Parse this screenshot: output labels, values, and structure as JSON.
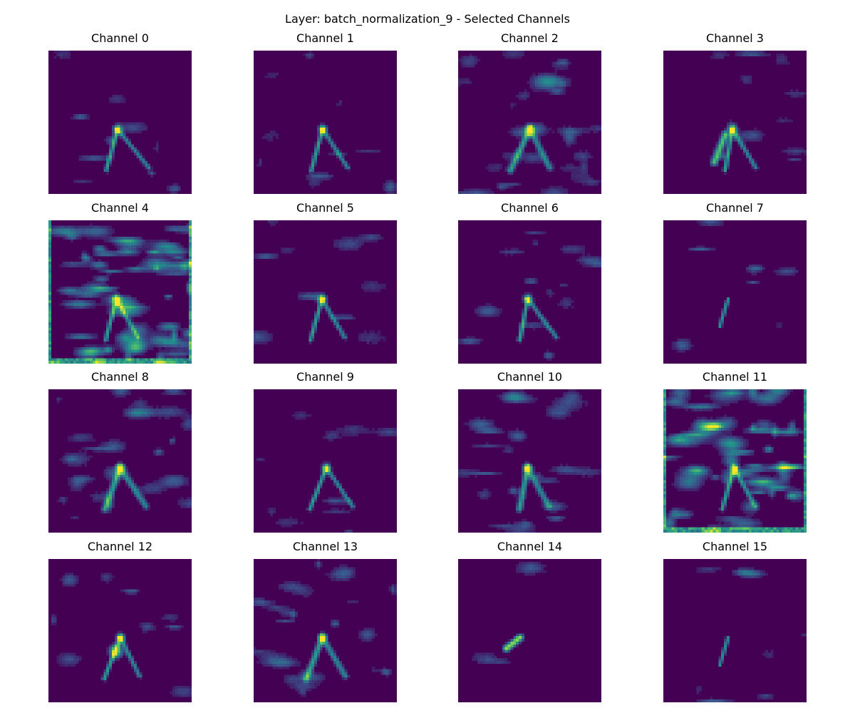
{
  "figure": {
    "title": "Layer: batch_normalization_9 - Selected Channels",
    "colormap": [
      "#440154",
      "#3b528b",
      "#21918c",
      "#5ec962",
      "#fde725"
    ],
    "background_color": "#440154"
  },
  "panels": [
    {
      "title": "Channel 0",
      "feature": "thin-peak"
    },
    {
      "title": "Channel 1",
      "feature": "thin-peak"
    },
    {
      "title": "Channel 2",
      "feature": "busy-peak"
    },
    {
      "title": "Channel 3",
      "feature": "left-stroke"
    },
    {
      "title": "Channel 4",
      "feature": "clouds-border"
    },
    {
      "title": "Channel 5",
      "feature": "thin-peak"
    },
    {
      "title": "Channel 6",
      "feature": "sparse-peak"
    },
    {
      "title": "Channel 7",
      "feature": "sparse-dots"
    },
    {
      "title": "Channel 8",
      "feature": "faint-peak"
    },
    {
      "title": "Channel 9",
      "feature": "thin-peak"
    },
    {
      "title": "Channel 10",
      "feature": "faint-peak"
    },
    {
      "title": "Channel 11",
      "feature": "clouds-border"
    },
    {
      "title": "Channel 12",
      "feature": "blob-peak"
    },
    {
      "title": "Channel 13",
      "feature": "faint-peak"
    },
    {
      "title": "Channel 14",
      "feature": "single-blob"
    },
    {
      "title": "Channel 15",
      "feature": "sparse-dots"
    }
  ]
}
